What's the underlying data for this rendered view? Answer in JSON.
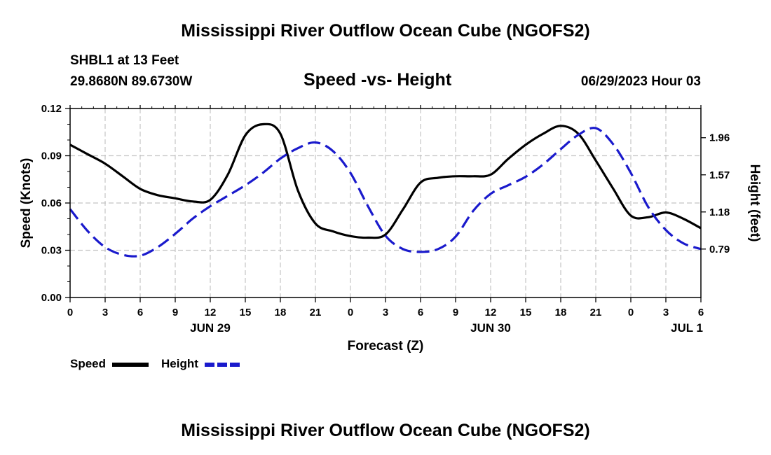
{
  "header": {
    "title": "Mississippi River Outflow Ocean Cube (NGOFS2)",
    "station": "SHBL1 at 13 Feet",
    "coordinates": "29.8680N  89.6730W",
    "datetime": "06/29/2023 Hour 03"
  },
  "footer": {
    "title": "Mississippi River Outflow Ocean Cube (NGOFS2)"
  },
  "colors": {
    "speed": "#000000",
    "height": "#1a1acc",
    "grid": "#c4c4c4"
  },
  "legend": [
    {
      "label": "Speed",
      "style": "solid",
      "color": "#000000"
    },
    {
      "label": "Height",
      "style": "dashed",
      "color": "#1a1acc"
    }
  ],
  "chart_data": {
    "type": "line",
    "title": "Speed -vs- Height",
    "xlabel": "Forecast (Z)",
    "ylabel": "Speed (Knots)",
    "y2label": "Height (feet)",
    "x_unit": "hours from 06/29/2023 00Z",
    "xlim": [
      0,
      54
    ],
    "ylim": [
      0,
      0.12
    ],
    "y2lim": [
      0.281,
      2.267
    ],
    "x_ticks": [
      0,
      3,
      6,
      9,
      12,
      15,
      18,
      21,
      24,
      27,
      30,
      33,
      36,
      39,
      42,
      45,
      48,
      51,
      54
    ],
    "x_tick_labels": [
      "0",
      "3",
      "6",
      "9",
      "12",
      "15",
      "18",
      "21",
      "0",
      "3",
      "6",
      "9",
      "12",
      "15",
      "18",
      "21",
      "0",
      "3",
      "6"
    ],
    "day_labels": [
      {
        "x": 12,
        "label": "JUN 29"
      },
      {
        "x": 36,
        "label": "JUN 30"
      },
      {
        "x": 52.8,
        "label": "JUL 1"
      }
    ],
    "y_ticks": [
      0.0,
      0.03,
      0.06,
      0.09,
      0.12
    ],
    "y_tick_labels": [
      "0.00",
      "0.03",
      "0.06",
      "0.09",
      "0.12"
    ],
    "y2_ticks": [
      0.79,
      1.18,
      1.57,
      1.96
    ],
    "y2_tick_labels": [
      "0.79",
      "1.18",
      "1.57",
      "1.96"
    ],
    "series": [
      {
        "name": "Speed",
        "axis": "left",
        "x": [
          0,
          1.5,
          3,
          4.5,
          6,
          7.5,
          9,
          10.5,
          12,
          13.5,
          15,
          16.5,
          18,
          19.5,
          21,
          22.5,
          24,
          25.5,
          27,
          28.5,
          30,
          31.5,
          33,
          34.5,
          36,
          37.5,
          39,
          40.5,
          42,
          43.5,
          45,
          46.5,
          48,
          49.5,
          51,
          52.5,
          54
        ],
        "values": [
          0.097,
          0.091,
          0.085,
          0.077,
          0.069,
          0.065,
          0.063,
          0.061,
          0.062,
          0.078,
          0.103,
          0.11,
          0.104,
          0.068,
          0.047,
          0.042,
          0.039,
          0.038,
          0.04,
          0.056,
          0.073,
          0.076,
          0.077,
          0.077,
          0.078,
          0.088,
          0.097,
          0.104,
          0.109,
          0.104,
          0.087,
          0.069,
          0.052,
          0.051,
          0.054,
          0.05,
          0.044
        ]
      },
      {
        "name": "Height",
        "axis": "right",
        "x": [
          0,
          1.5,
          3,
          4.5,
          6,
          7.5,
          9,
          10.5,
          12,
          13.5,
          15,
          16.5,
          18,
          19.5,
          21,
          22.5,
          24,
          25.5,
          27,
          28.5,
          30,
          31.5,
          33,
          34.5,
          36,
          37.5,
          39,
          40.5,
          42,
          43.5,
          45,
          46.5,
          48,
          49.5,
          51,
          52.5,
          54
        ],
        "values": [
          1.21,
          0.98,
          0.81,
          0.73,
          0.72,
          0.81,
          0.95,
          1.11,
          1.24,
          1.35,
          1.46,
          1.59,
          1.74,
          1.85,
          1.91,
          1.82,
          1.59,
          1.24,
          0.93,
          0.79,
          0.76,
          0.79,
          0.92,
          1.19,
          1.37,
          1.46,
          1.55,
          1.68,
          1.84,
          1.99,
          2.06,
          1.89,
          1.59,
          1.23,
          0.99,
          0.85,
          0.79
        ]
      }
    ]
  }
}
